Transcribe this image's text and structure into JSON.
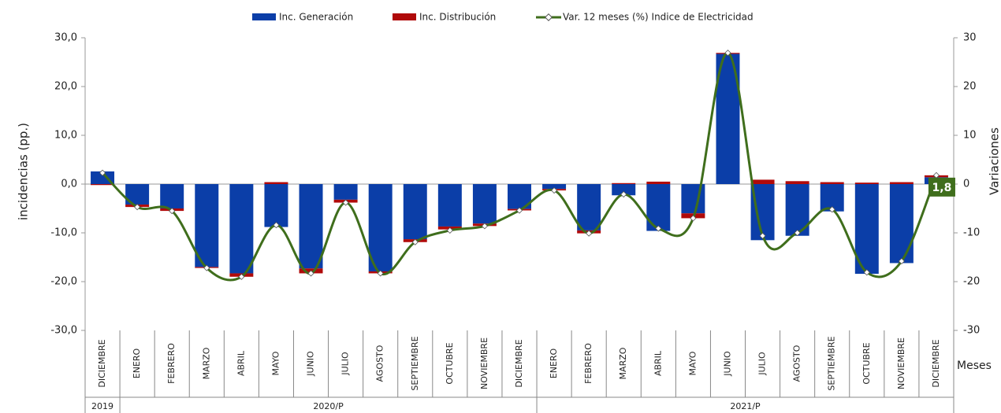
{
  "chart_data": {
    "type": "bar",
    "groups": [
      {
        "label": "2019",
        "categories": [
          "DICIEMBRE"
        ]
      },
      {
        "label": "2020/P",
        "categories": [
          "ENERO",
          "FEBRERO",
          "MARZO",
          "ABRIL",
          "MAYO",
          "JUNIO",
          "JULIO",
          "AGOSTO",
          "SEPTIEMBRE",
          "OCTUBRE",
          "NOVIEMBRE",
          "DICIEMBRE"
        ]
      },
      {
        "label": "2021/P",
        "categories": [
          "ENERO",
          "FEBRERO",
          "MARZO",
          "ABRIL",
          "MAYO",
          "JUNIO",
          "JULIO",
          "AGOSTO",
          "SEPTIEMBRE",
          "OCTUBRE",
          "NOVIEMBRE",
          "DICIEMBRE"
        ]
      }
    ],
    "series": [
      {
        "name": "Inc. Generación",
        "type": "bar",
        "color": "#0b3ea8",
        "values": [
          2.6,
          -4.2,
          -5.0,
          -17.0,
          -18.3,
          -8.8,
          -17.3,
          -3.2,
          -17.9,
          -11.3,
          -8.7,
          -8.1,
          -5.1,
          -1.0,
          -9.5,
          -2.3,
          -9.6,
          -6.0,
          26.7,
          -11.5,
          -10.6,
          -5.6,
          -18.4,
          -16.2,
          1.4
        ]
      },
      {
        "name": "Inc. Distribución",
        "type": "bar",
        "color": "#b00a0a",
        "values": [
          -0.2,
          -0.5,
          -0.5,
          -0.2,
          -0.7,
          0.4,
          -1.0,
          -0.6,
          -0.4,
          -0.6,
          -0.6,
          -0.5,
          -0.3,
          -0.3,
          -0.6,
          0.2,
          0.5,
          -1.0,
          0.2,
          0.9,
          0.6,
          0.4,
          0.3,
          0.4,
          0.4
        ]
      },
      {
        "name": "Var. 12 meses (%) Indice de Electricidad",
        "type": "line",
        "axis": "y2",
        "color": "#3f6e1c",
        "values": [
          2.3,
          -4.7,
          -5.5,
          -17.2,
          -19.0,
          -8.4,
          -18.3,
          -3.8,
          -18.3,
          -11.9,
          -9.5,
          -8.6,
          -5.4,
          -1.3,
          -10.1,
          -2.1,
          -9.1,
          -7.0,
          26.9,
          -10.6,
          -10.0,
          -5.2,
          -18.1,
          -15.8,
          1.8
        ],
        "value_labels": [
          null,
          null,
          null,
          null,
          null,
          null,
          null,
          null,
          null,
          null,
          null,
          null,
          null,
          null,
          null,
          null,
          null,
          null,
          null,
          null,
          null,
          null,
          null,
          null,
          "1,8"
        ]
      }
    ],
    "ylabel": "incidencias (pp.)",
    "y2label": "Variaciones",
    "xlabel": "Meses",
    "ylim": [
      -30,
      30
    ],
    "yticks": [
      {
        "value": 30,
        "label": "30,0"
      },
      {
        "value": 20,
        "label": "20,0"
      },
      {
        "value": 10,
        "label": "10,0"
      },
      {
        "value": 0,
        "label": "0,0"
      },
      {
        "value": -10,
        "label": "-10,0"
      },
      {
        "value": -20,
        "label": "-20,0"
      },
      {
        "value": -30,
        "label": "-30,0"
      }
    ],
    "y2lim": [
      -30,
      30
    ],
    "y2ticks": [
      30,
      20,
      10,
      0,
      -10,
      -20,
      -30
    ]
  }
}
